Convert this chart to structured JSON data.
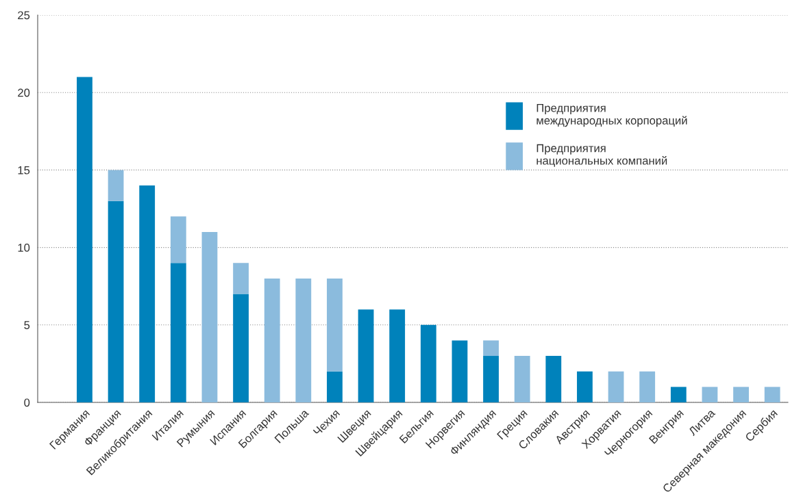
{
  "chart_data": {
    "type": "bar",
    "stacked": true,
    "categories": [
      "Германия",
      "Франция",
      "Великобритания",
      "Италия",
      "Румыния",
      "Испания",
      "Болгария",
      "Польша",
      "Чехия",
      "Швеция",
      "Швейцария",
      "Бельгия",
      "Норвегия",
      "Финляндия",
      "Греция",
      "Словакия",
      "Австрия",
      "Хорватия",
      "Черногория",
      "Венгрия",
      "Литва",
      "Северная македония",
      "Сербия"
    ],
    "series": [
      {
        "name": "Предприятия\nмеждународных корпораций",
        "color": "#0082bb",
        "values": [
          21,
          13,
          14,
          9,
          0,
          7,
          0,
          0,
          2,
          6,
          6,
          5,
          4,
          3,
          0,
          3,
          2,
          0,
          0,
          1,
          0,
          0,
          0
        ]
      },
      {
        "name": "Предприятия\nнациональных компаний",
        "color": "#8bbbdd",
        "values": [
          0,
          2,
          0,
          3,
          11,
          2,
          8,
          8,
          6,
          0,
          0,
          0,
          0,
          1,
          3,
          0,
          0,
          2,
          2,
          0,
          1,
          1,
          1
        ]
      }
    ],
    "ylim": [
      0,
      25
    ],
    "yticks": [
      0,
      5,
      10,
      15,
      20,
      25
    ],
    "grid": "y",
    "legend": "top right"
  }
}
